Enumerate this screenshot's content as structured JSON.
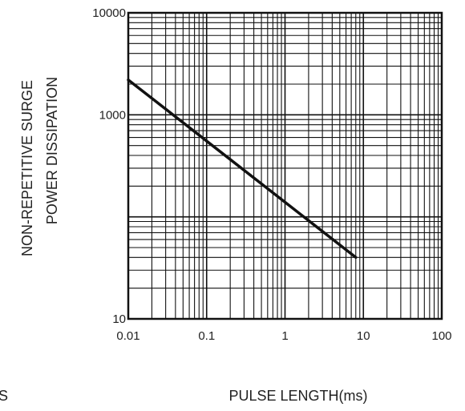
{
  "chart_data": {
    "type": "line",
    "title": "",
    "xlabel": "PULSE LENGTH(ms)",
    "ylabel_lines": [
      "NON-REPETITIVE SURGE",
      "POWER DISSIPATION"
    ],
    "stray_text": "S",
    "x_scale": "log",
    "y_scale": "log",
    "xlim": [
      0.01,
      100
    ],
    "ylim": [
      10,
      10000
    ],
    "x_ticks": [
      {
        "value": 0.01,
        "label": "0.01"
      },
      {
        "value": 0.1,
        "label": "0.1"
      },
      {
        "value": 1,
        "label": "1"
      },
      {
        "value": 10,
        "label": "10"
      },
      {
        "value": 100,
        "label": "100"
      }
    ],
    "y_ticks": [
      {
        "value": 10,
        "label": "10"
      },
      {
        "value": 1000,
        "label": "1000"
      },
      {
        "value": 10000,
        "label": "10000"
      }
    ],
    "grid": true,
    "series": [
      {
        "color": "#111111",
        "x": [
          0.01,
          8
        ],
        "y": [
          2200,
          40
        ]
      }
    ]
  }
}
